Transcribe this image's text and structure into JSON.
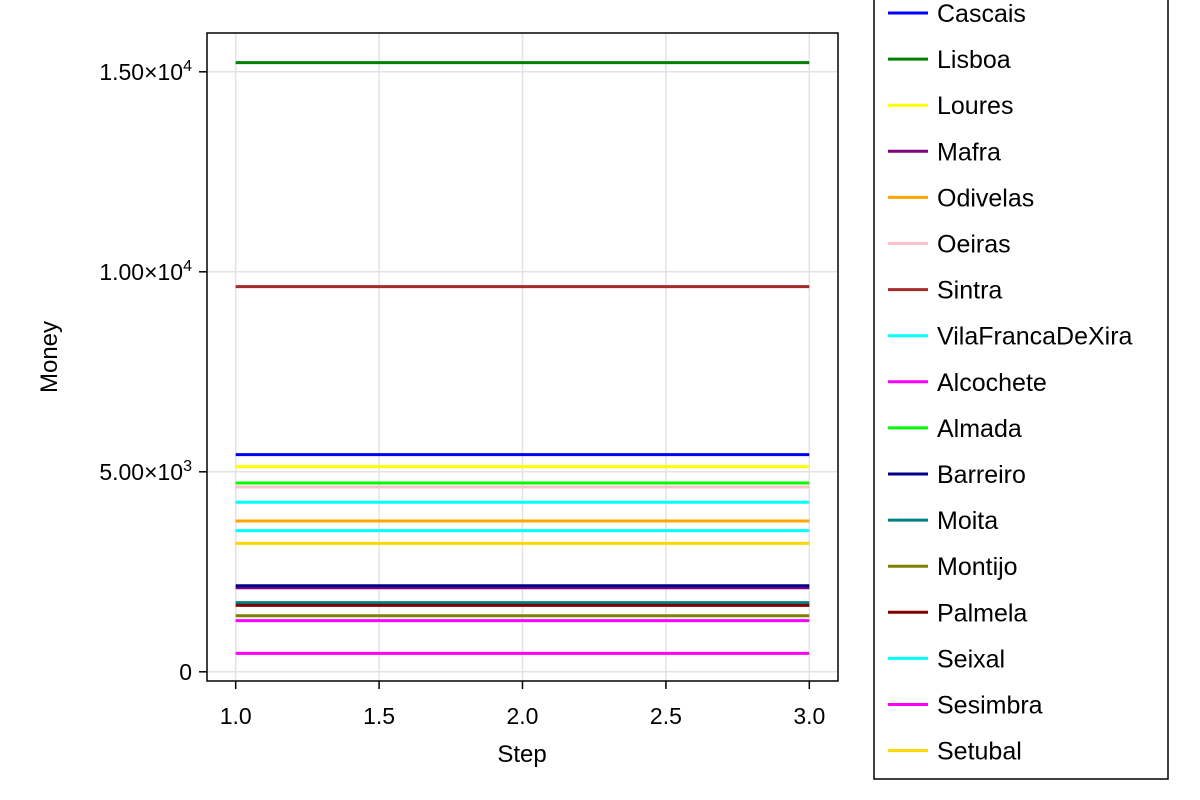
{
  "chart_data": {
    "type": "line",
    "xlabel": "Step",
    "ylabel": "Money",
    "xlim": [
      0.9,
      3.1
    ],
    "ylim": [
      -230,
      15970
    ],
    "xticks": [
      1.0,
      1.5,
      2.0,
      2.5,
      3.0
    ],
    "xtick_labels": [
      "1.0",
      "1.5",
      "2.0",
      "2.5",
      "3.0"
    ],
    "yticks": [
      0,
      5000,
      10000,
      15000
    ],
    "ytick_labels": [
      {
        "mant": "0",
        "exp": ""
      },
      {
        "mant": "5.00×10",
        "exp": "3"
      },
      {
        "mant": "1.00×10",
        "exp": "4"
      },
      {
        "mant": "1.50×10",
        "exp": "4"
      }
    ],
    "grid": true,
    "legend_position": "right",
    "x": [
      1,
      2,
      3
    ],
    "series": [
      {
        "name": "Cascais",
        "color": "#0000ff",
        "values": [
          5430,
          5430,
          5430
        ]
      },
      {
        "name": "Lisboa",
        "color": "#008000",
        "values": [
          15230,
          15230,
          15230
        ]
      },
      {
        "name": "Loures",
        "color": "#ffff00",
        "values": [
          5130,
          5130,
          5130
        ]
      },
      {
        "name": "Mafra",
        "color": "#800080",
        "values": [
          2100,
          2100,
          2100
        ]
      },
      {
        "name": "Odivelas",
        "color": "#ffa500",
        "values": [
          3770,
          3770,
          3770
        ]
      },
      {
        "name": "Oeiras",
        "color": "#ffc0cb",
        "values": [
          4620,
          4620,
          4620
        ]
      },
      {
        "name": "Sintra",
        "color": "#a52a2a",
        "values": [
          9630,
          9630,
          9630
        ]
      },
      {
        "name": "VilaFrancaDeXira",
        "color": "#00ffff",
        "values": [
          4240,
          4240,
          4240
        ]
      },
      {
        "name": "Alcochete",
        "color": "#ff00ff",
        "values": [
          460,
          460,
          460
        ]
      },
      {
        "name": "Almada",
        "color": "#00ff00",
        "values": [
          4720,
          4720,
          4720
        ]
      },
      {
        "name": "Barreiro",
        "color": "#00008b",
        "values": [
          2150,
          2150,
          2150
        ]
      },
      {
        "name": "Moita",
        "color": "#008080",
        "values": [
          1730,
          1730,
          1730
        ]
      },
      {
        "name": "Montijo",
        "color": "#808000",
        "values": [
          1400,
          1400,
          1400
        ]
      },
      {
        "name": "Palmela",
        "color": "#800000",
        "values": [
          1660,
          1660,
          1660
        ]
      },
      {
        "name": "Seixal",
        "color": "#00ffff",
        "values": [
          3530,
          3530,
          3530
        ]
      },
      {
        "name": "Sesimbra",
        "color": "#ff00ff",
        "values": [
          1280,
          1280,
          1280
        ]
      },
      {
        "name": "Setubal",
        "color": "#ffd700",
        "values": [
          3210,
          3210,
          3210
        ]
      }
    ]
  }
}
